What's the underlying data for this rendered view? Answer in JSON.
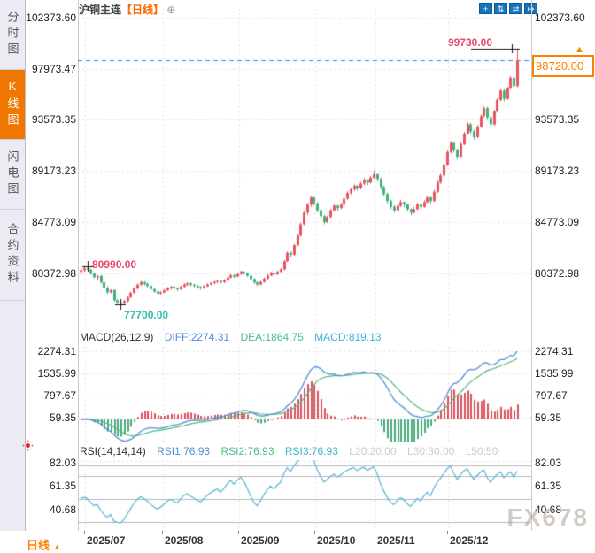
{
  "header": {
    "title": "沪铜主连",
    "period_tag": "【日线】",
    "add_icon": "⊕"
  },
  "sidebar": {
    "tabs": [
      {
        "label": "分时图",
        "active": false
      },
      {
        "label": "K线图",
        "active": true
      },
      {
        "label": "闪电图",
        "active": false
      },
      {
        "label": "合约资料",
        "active": false
      }
    ]
  },
  "toolbar": {
    "buttons": [
      {
        "name": "crosshair",
        "glyph": "+"
      },
      {
        "name": "scale-y-axis",
        "glyph": "⇅"
      },
      {
        "name": "scale-x-axis",
        "glyph": "⇄"
      },
      {
        "name": "pan-right",
        "glyph": "↦"
      }
    ]
  },
  "price_panel": {
    "axis_labels": [
      "102373.60",
      "97973.47",
      "93573.35",
      "89173.23",
      "84773.09",
      "80372.98"
    ],
    "high_annotation": "99730.00",
    "early_high_annotation": "80990.00",
    "low_annotation": "77700.00",
    "last_price": "98720.00",
    "pennant": "▲"
  },
  "macd_panel": {
    "indicator_label": "MACD(26,12,9)",
    "diff_label": "DIFF:2274.31",
    "dea_label": "DEA:1864.75",
    "macd_label": "MACD:819.13",
    "axis_labels": [
      "2274.31",
      "1535.99",
      "797.67",
      "59.35"
    ]
  },
  "rsi_panel": {
    "indicator_label": "RSI(14,14,14)",
    "rsi1_label": "RSI1:76.93",
    "rsi2_label": "RSI2:76.93",
    "rsi3_label": "RSI3:76.93",
    "l20_label": "L20:20.00",
    "l30_label": "L30:30.00",
    "l50_label": "L50:50",
    "axis_labels": [
      "82.03",
      "61.35",
      "40.68"
    ]
  },
  "bottom_bar": {
    "period_label": "日线",
    "arrow": "▲",
    "months": [
      "2025/07",
      "2025/08",
      "2025/09",
      "2025/10",
      "2025/11",
      "2025/12"
    ]
  },
  "watermark": "FX678",
  "colors": {
    "up": "#e8545f",
    "down": "#41b07e",
    "diff_line": "#4f8fd8",
    "dea_line": "#56b87e",
    "hist_up": "#d9525e",
    "hist_down": "#4aa97c",
    "rsi_line": "#56b4d3",
    "dashed_line": "#2b8cf0",
    "grid": "#e2e2e8",
    "level_line": "#b9b9b9",
    "accent_orange": "#ff8000",
    "annotation_red": "#e8476b",
    "annotation_teal": "#2fbfa6",
    "toolbar_blue": "#1475bc",
    "black": "#111"
  },
  "chart_data": {
    "type": "candlestick",
    "symbol": "沪铜主连",
    "interval": "日线",
    "price_axis": [
      102373.6,
      97973.47,
      93573.35,
      89173.23,
      84773.09,
      80372.98
    ],
    "annotations": {
      "high": 99730.0,
      "low": 77700.0,
      "early_high": 80990.0,
      "last_close": 98720.0,
      "high_idx": 131,
      "low_idx": 12,
      "early_high_idx": 2
    },
    "macd_axis": [
      2274.31,
      1535.99,
      797.67,
      59.35
    ],
    "macd_readout": {
      "diff": 2274.31,
      "dea": 1864.75,
      "macd": 819.13
    },
    "rsi_axis": [
      82.03,
      61.35,
      40.68
    ],
    "rsi_readout": {
      "rsi1": 76.93,
      "rsi2": 76.93,
      "rsi3": 76.93,
      "l20": 20.0,
      "l30": 30.0,
      "l50": 50
    },
    "rsi_levels": [
      80,
      70,
      50,
      30
    ],
    "months_x": [
      96,
      184,
      270,
      356,
      424,
      506
    ],
    "ohlc": [
      [
        80500,
        80750,
        80300,
        80650
      ],
      [
        80650,
        80900,
        80500,
        80820
      ],
      [
        80820,
        80990,
        80550,
        80700
      ],
      [
        80700,
        80780,
        80250,
        80350
      ],
      [
        80350,
        80480,
        79950,
        80050
      ],
      [
        80050,
        80200,
        79750,
        80150
      ],
      [
        80150,
        80250,
        79500,
        79600
      ],
      [
        79600,
        79720,
        79000,
        79120
      ],
      [
        79120,
        79260,
        78620,
        78740
      ],
      [
        78740,
        78990,
        78650,
        78940
      ],
      [
        78940,
        79000,
        77960,
        78060
      ],
      [
        78060,
        78160,
        77760,
        77880
      ],
      [
        77880,
        78000,
        77700,
        77800
      ],
      [
        77800,
        78120,
        77720,
        77980
      ],
      [
        77980,
        78420,
        77900,
        78320
      ],
      [
        78320,
        78800,
        78260,
        78700
      ],
      [
        78700,
        79180,
        78620,
        79080
      ],
      [
        79080,
        79500,
        78980,
        79400
      ],
      [
        79400,
        79720,
        79300,
        79620
      ],
      [
        79620,
        79700,
        79340,
        79480
      ],
      [
        79480,
        79560,
        79160,
        79300
      ],
      [
        79300,
        79380,
        78900,
        79020
      ],
      [
        79020,
        79120,
        78700,
        78820
      ],
      [
        78820,
        78940,
        78520,
        78640
      ],
      [
        78640,
        78840,
        78560,
        78740
      ],
      [
        78740,
        79020,
        78680,
        78920
      ],
      [
        78920,
        79200,
        78860,
        79120
      ],
      [
        79120,
        79300,
        78980,
        79220
      ],
      [
        79220,
        79280,
        78960,
        79100
      ],
      [
        79100,
        79180,
        78860,
        79000
      ],
      [
        79000,
        79320,
        78940,
        79220
      ],
      [
        79220,
        79520,
        79160,
        79420
      ],
      [
        79420,
        79620,
        79300,
        79520
      ],
      [
        79520,
        79580,
        79260,
        79400
      ],
      [
        79400,
        79460,
        79160,
        79300
      ],
      [
        79300,
        79380,
        79060,
        79200
      ],
      [
        79200,
        79280,
        78980,
        79120
      ],
      [
        79120,
        79360,
        79040,
        79260
      ],
      [
        79260,
        79520,
        79200,
        79420
      ],
      [
        79420,
        79640,
        79340,
        79540
      ],
      [
        79540,
        79740,
        79440,
        79640
      ],
      [
        79640,
        79820,
        79520,
        79720
      ],
      [
        79720,
        79780,
        79480,
        79620
      ],
      [
        79620,
        79880,
        79540,
        79780
      ],
      [
        79780,
        80120,
        79700,
        80020
      ],
      [
        80020,
        80320,
        79940,
        80220
      ],
      [
        80220,
        80280,
        79960,
        80100
      ],
      [
        80100,
        80420,
        80040,
        80320
      ],
      [
        80320,
        80620,
        80240,
        80520
      ],
      [
        80520,
        80580,
        80260,
        80400
      ],
      [
        80400,
        80460,
        80060,
        80180
      ],
      [
        80180,
        80260,
        79760,
        79880
      ],
      [
        79880,
        79960,
        79480,
        79600
      ],
      [
        79600,
        79680,
        79280,
        79420
      ],
      [
        79420,
        79740,
        79340,
        79640
      ],
      [
        79640,
        80020,
        79560,
        79920
      ],
      [
        79920,
        80300,
        79840,
        80200
      ],
      [
        80200,
        80520,
        80120,
        80420
      ],
      [
        80420,
        80480,
        80160,
        80300
      ],
      [
        80300,
        80620,
        80220,
        80520
      ],
      [
        80520,
        80820,
        80440,
        80720
      ],
      [
        80720,
        81520,
        80650,
        81420
      ],
      [
        81420,
        82260,
        81350,
        82140
      ],
      [
        82140,
        82260,
        81760,
        81980
      ],
      [
        81980,
        82900,
        81900,
        82800
      ],
      [
        82800,
        83740,
        82720,
        83620
      ],
      [
        83620,
        84720,
        83540,
        84600
      ],
      [
        84600,
        85720,
        84520,
        85600
      ],
      [
        85600,
        86440,
        85400,
        86300
      ],
      [
        86300,
        87060,
        86100,
        86900
      ],
      [
        86900,
        87000,
        86220,
        86400
      ],
      [
        86400,
        86520,
        85620,
        85800
      ],
      [
        85800,
        85940,
        85100,
        85300
      ],
      [
        85300,
        85420,
        84600,
        84800
      ],
      [
        84800,
        85340,
        84720,
        85220
      ],
      [
        85220,
        85920,
        85140,
        85800
      ],
      [
        85800,
        86340,
        85700,
        86200
      ],
      [
        86200,
        86280,
        85780,
        86000
      ],
      [
        86000,
        86440,
        85900,
        86300
      ],
      [
        86300,
        86940,
        86220,
        86800
      ],
      [
        86800,
        87440,
        86700,
        87300
      ],
      [
        87300,
        87740,
        87160,
        87600
      ],
      [
        87600,
        88040,
        87460,
        87900
      ],
      [
        87900,
        87980,
        87480,
        87700
      ],
      [
        87700,
        88240,
        87600,
        88100
      ],
      [
        88100,
        88560,
        87960,
        88400
      ],
      [
        88400,
        88480,
        87960,
        88200
      ],
      [
        88200,
        88760,
        88100,
        88600
      ],
      [
        88600,
        89240,
        88500,
        88900
      ],
      [
        88900,
        89000,
        88280,
        88500
      ],
      [
        88500,
        88620,
        87580,
        87800
      ],
      [
        87800,
        87940,
        87000,
        87200
      ],
      [
        87200,
        87340,
        86400,
        86600
      ],
      [
        86600,
        86740,
        85900,
        86100
      ],
      [
        86100,
        86240,
        85580,
        85800
      ],
      [
        85800,
        86380,
        85700,
        86200
      ],
      [
        86200,
        86700,
        86080,
        86500
      ],
      [
        86500,
        86580,
        86080,
        86300
      ],
      [
        86300,
        86380,
        85700,
        85900
      ],
      [
        85900,
        85980,
        85380,
        85600
      ],
      [
        85600,
        86080,
        85520,
        85900
      ],
      [
        85900,
        86460,
        85820,
        86300
      ],
      [
        86300,
        86400,
        85860,
        86100
      ],
      [
        86100,
        86680,
        86020,
        86500
      ],
      [
        86500,
        87060,
        86420,
        86900
      ],
      [
        86900,
        87000,
        86380,
        86600
      ],
      [
        86600,
        87560,
        86520,
        87400
      ],
      [
        87400,
        88360,
        87300,
        88200
      ],
      [
        88200,
        88980,
        88080,
        88800
      ],
      [
        88800,
        89880,
        88700,
        89700
      ],
      [
        89700,
        90980,
        89600,
        90800
      ],
      [
        90800,
        91780,
        90700,
        91600
      ],
      [
        91600,
        91700,
        90780,
        91000
      ],
      [
        91000,
        91120,
        90180,
        90400
      ],
      [
        90400,
        91660,
        90300,
        91500
      ],
      [
        91500,
        92560,
        91400,
        92400
      ],
      [
        92400,
        93380,
        92300,
        93200
      ],
      [
        93200,
        93320,
        92380,
        92600
      ],
      [
        92600,
        92720,
        91880,
        92100
      ],
      [
        92100,
        93160,
        92000,
        93000
      ],
      [
        93000,
        94060,
        92900,
        93900
      ],
      [
        93900,
        94760,
        93800,
        94600
      ],
      [
        94600,
        94700,
        93580,
        93800
      ],
      [
        93800,
        93920,
        92980,
        93200
      ],
      [
        93200,
        94440,
        93100,
        94300
      ],
      [
        94300,
        95440,
        94200,
        95300
      ],
      [
        95300,
        96240,
        95200,
        96100
      ],
      [
        96100,
        96220,
        95180,
        95400
      ],
      [
        95400,
        96440,
        95300,
        96300
      ],
      [
        96300,
        97360,
        96200,
        97200
      ],
      [
        97200,
        97320,
        96280,
        96500
      ],
      [
        96500,
        99730,
        96400,
        98720
      ]
    ]
  }
}
